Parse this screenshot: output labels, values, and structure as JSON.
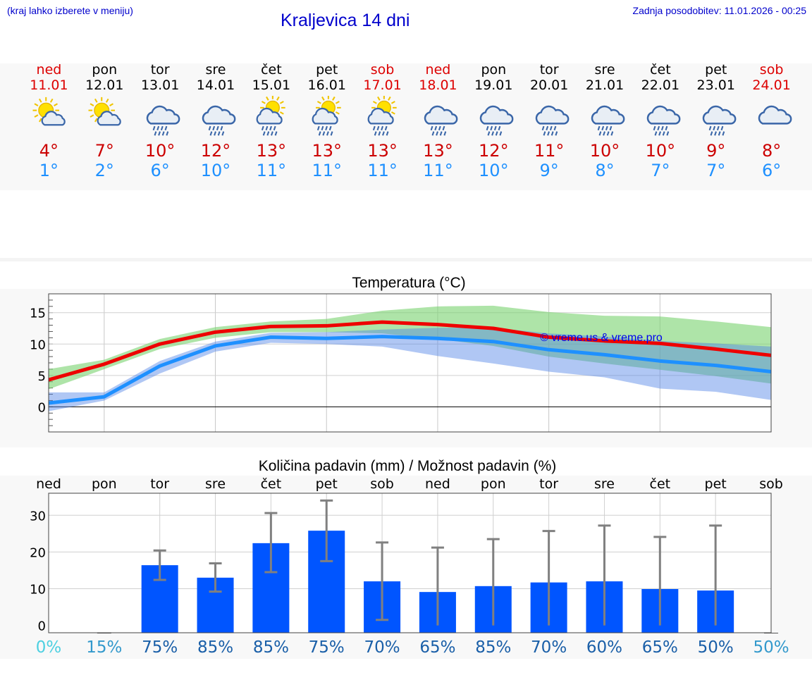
{
  "header": {
    "menu_hint": "(kraj lahko izberete v meniju)",
    "title": "Kraljevica 14 dni",
    "last_update": "Zadnja posodobitev: 11.01.2026 - 00:25"
  },
  "colors": {
    "link_blue": "#0000cc",
    "weekend_red": "#dd0000",
    "max_red": "#cc0000",
    "min_blue": "#1e90ff",
    "bar_blue": "#0055ff"
  },
  "forecast": [
    {
      "day": "ned",
      "date": "11.01",
      "icon": "sun-cloud-icon",
      "max": "4°",
      "min": "1°",
      "weekend": true
    },
    {
      "day": "pon",
      "date": "12.01",
      "icon": "sun-cloud-icon",
      "max": "7°",
      "min": "2°",
      "weekend": false
    },
    {
      "day": "tor",
      "date": "13.01",
      "icon": "rain-cloud-icon",
      "max": "10°",
      "min": "6°",
      "weekend": false
    },
    {
      "day": "sre",
      "date": "14.01",
      "icon": "rain-cloud-icon",
      "max": "12°",
      "min": "10°",
      "weekend": false
    },
    {
      "day": "čet",
      "date": "15.01",
      "icon": "sun-rain-icon",
      "max": "13°",
      "min": "11°",
      "weekend": false
    },
    {
      "day": "pet",
      "date": "16.01",
      "icon": "sun-rain-icon",
      "max": "13°",
      "min": "11°",
      "weekend": false
    },
    {
      "day": "sob",
      "date": "17.01",
      "icon": "sun-rain-icon",
      "max": "13°",
      "min": "11°",
      "weekend": true
    },
    {
      "day": "ned",
      "date": "18.01",
      "icon": "rain-cloud-icon",
      "max": "13°",
      "min": "11°",
      "weekend": true
    },
    {
      "day": "pon",
      "date": "19.01",
      "icon": "rain-cloud-icon",
      "max": "12°",
      "min": "10°",
      "weekend": false
    },
    {
      "day": "tor",
      "date": "20.01",
      "icon": "rain-cloud-icon",
      "max": "11°",
      "min": "9°",
      "weekend": false
    },
    {
      "day": "sre",
      "date": "21.01",
      "icon": "rain-cloud-icon",
      "max": "10°",
      "min": "8°",
      "weekend": false
    },
    {
      "day": "čet",
      "date": "22.01",
      "icon": "rain-cloud-icon",
      "max": "10°",
      "min": "7°",
      "weekend": false
    },
    {
      "day": "pet",
      "date": "23.01",
      "icon": "rain-cloud-icon",
      "max": "9°",
      "min": "7°",
      "weekend": false
    },
    {
      "day": "sob",
      "date": "24.01",
      "icon": "cloud-icon",
      "max": "8°",
      "min": "6°",
      "weekend": true
    }
  ],
  "chart_data": [
    {
      "type": "line",
      "title": "Temperatura (°C)",
      "watermark": "© vreme.us & vreme.pro",
      "ylim": [
        -4,
        18
      ],
      "yticks": [
        "15",
        "10",
        "5",
        "0"
      ],
      "ytick_values": [
        15,
        10,
        5,
        0
      ],
      "series": [
        {
          "name": "max",
          "values": [
            4.3,
            6.8,
            10.0,
            11.9,
            12.8,
            12.9,
            13.5,
            13.1,
            12.5,
            11.1,
            10.5,
            10.1,
            9.2,
            8.2
          ]
        },
        {
          "name": "min",
          "values": [
            0.6,
            1.6,
            6.5,
            9.7,
            11.1,
            10.9,
            11.2,
            10.9,
            10.4,
            9.1,
            8.3,
            7.3,
            6.6,
            5.6
          ]
        },
        {
          "name": "max_range_high",
          "values": [
            6.0,
            7.5,
            10.8,
            12.7,
            13.6,
            14.0,
            15.3,
            16.0,
            16.1,
            15.1,
            14.5,
            14.4,
            13.6,
            12.7
          ]
        },
        {
          "name": "max_range_low",
          "values": [
            2.8,
            6.0,
            9.2,
            11.0,
            11.9,
            11.9,
            11.7,
            10.8,
            9.7,
            8.0,
            6.9,
            5.9,
            4.9,
            3.7
          ]
        },
        {
          "name": "min_range_high",
          "values": [
            2.3,
            2.3,
            7.3,
            10.4,
            11.8,
            11.9,
            12.3,
            12.6,
            12.6,
            11.7,
            11.2,
            10.5,
            10.1,
            9.6
          ]
        },
        {
          "name": "min_range_low",
          "values": [
            -0.7,
            1.0,
            5.3,
            8.8,
            10.2,
            10.0,
            9.6,
            8.1,
            6.9,
            5.6,
            4.7,
            2.9,
            2.4,
            1.1
          ]
        }
      ]
    },
    {
      "type": "bar",
      "title": "Količina padavin (mm) / Možnost padavin (%)",
      "categories": [
        "ned",
        "pon",
        "tor",
        "sre",
        "čet",
        "pet",
        "sob",
        "ned",
        "pon",
        "tor",
        "sre",
        "čet",
        "pet",
        "sob"
      ],
      "values": [
        0,
        0,
        16.4,
        13.0,
        22.4,
        25.8,
        12.0,
        9.1,
        10.7,
        11.7,
        12.0,
        9.9,
        9.5,
        0
      ],
      "error_high": [
        0,
        0,
        20.4,
        16.9,
        30.6,
        34.0,
        22.6,
        21.2,
        23.5,
        25.7,
        27.2,
        24.1,
        27.2,
        0
      ],
      "error_low": [
        0,
        0,
        12.4,
        9.2,
        14.5,
        17.5,
        1.5,
        0,
        0,
        0,
        0,
        0,
        0,
        0
      ],
      "probability": [
        "0%",
        "15%",
        "75%",
        "85%",
        "85%",
        "75%",
        "70%",
        "65%",
        "85%",
        "70%",
        "60%",
        "65%",
        "50%",
        "50%"
      ],
      "probability_colors": [
        "#4dd0e1",
        "#3399cc",
        "#1a5fa8",
        "#1a5fa8",
        "#1a5fa8",
        "#1a5fa8",
        "#1a5fa8",
        "#1a5fa8",
        "#1a5fa8",
        "#1a5fa8",
        "#1a5fa8",
        "#1a5fa8",
        "#1a5fa8",
        "#3399cc"
      ],
      "ylim": [
        -2,
        36
      ],
      "yticks": [
        "30",
        "20",
        "10",
        "0"
      ],
      "ytick_values": [
        30,
        20,
        10,
        0
      ]
    }
  ]
}
